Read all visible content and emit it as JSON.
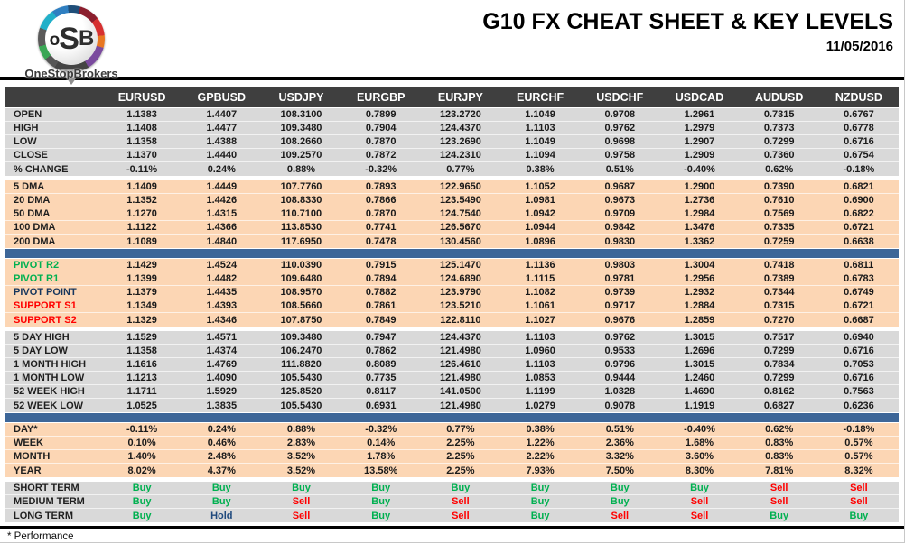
{
  "header": {
    "logo": {
      "l1": "o",
      "l2": "S",
      "l3": "B",
      "brand": "OneStopBrokers"
    },
    "title": "G10 FX CHEAT SHEET & KEY LEVELS",
    "date": "11/05/2016"
  },
  "footer": {
    "note": "* Performance"
  },
  "colors": {
    "header_row_bg": "#3f3f3f",
    "gray_band": "#d9d9d9",
    "peach_band": "#fcd6b4",
    "blue_bar": "#3d6698",
    "buy_green": "#00b050",
    "sell_red": "#ff0000",
    "hold_navy": "#1f497d",
    "pivot_navy": "#17365d",
    "text": "#1a1a1a"
  },
  "chart_data": {
    "type": "table",
    "title": "G10 FX CHEAT SHEET & KEY LEVELS",
    "date": "11/05/2016",
    "columns": [
      "EURUSD",
      "GPBUSD",
      "USDJPY",
      "EURGBP",
      "EURJPY",
      "EURCHF",
      "USDCHF",
      "USDCAD",
      "AUDUSD",
      "NZDUSD"
    ],
    "sections": [
      {
        "name": "ohlc",
        "style": "gray",
        "after": "gap",
        "rows": [
          {
            "label": "OPEN",
            "values": [
              "1.1383",
              "1.4407",
              "108.3100",
              "0.7899",
              "123.2720",
              "1.1049",
              "0.9708",
              "1.2961",
              "0.7315",
              "0.6767"
            ]
          },
          {
            "label": "HIGH",
            "values": [
              "1.1408",
              "1.4477",
              "109.3480",
              "0.7904",
              "124.4370",
              "1.1103",
              "0.9762",
              "1.2979",
              "0.7373",
              "0.6778"
            ]
          },
          {
            "label": "LOW",
            "values": [
              "1.1358",
              "1.4388",
              "108.2660",
              "0.7870",
              "123.2690",
              "1.1049",
              "0.9698",
              "1.2907",
              "0.7299",
              "0.6716"
            ]
          },
          {
            "label": "CLOSE",
            "values": [
              "1.1370",
              "1.4440",
              "109.2570",
              "0.7872",
              "124.2310",
              "1.1094",
              "0.9758",
              "1.2909",
              "0.7360",
              "0.6754"
            ]
          },
          {
            "label": "% CHANGE",
            "values": [
              "-0.11%",
              "0.24%",
              "0.88%",
              "-0.32%",
              "0.77%",
              "0.38%",
              "0.51%",
              "-0.40%",
              "0.62%",
              "-0.18%"
            ]
          }
        ]
      },
      {
        "name": "dma",
        "style": "peach",
        "after": "bar",
        "rows": [
          {
            "label": "5 DMA",
            "values": [
              "1.1409",
              "1.4449",
              "107.7760",
              "0.7893",
              "122.9650",
              "1.1052",
              "0.9687",
              "1.2900",
              "0.7390",
              "0.6821"
            ]
          },
          {
            "label": "20 DMA",
            "values": [
              "1.1352",
              "1.4426",
              "108.8330",
              "0.7866",
              "123.5490",
              "1.0981",
              "0.9673",
              "1.2736",
              "0.7610",
              "0.6900"
            ]
          },
          {
            "label": "50 DMA",
            "values": [
              "1.1270",
              "1.4315",
              "110.7100",
              "0.7870",
              "124.7540",
              "1.0942",
              "0.9709",
              "1.2984",
              "0.7569",
              "0.6822"
            ]
          },
          {
            "label": "100 DMA",
            "values": [
              "1.1122",
              "1.4366",
              "113.8530",
              "0.7741",
              "126.5670",
              "1.0944",
              "0.9842",
              "1.3476",
              "0.7335",
              "0.6721"
            ]
          },
          {
            "label": "200 DMA",
            "values": [
              "1.1089",
              "1.4840",
              "117.6950",
              "0.7478",
              "130.4560",
              "1.0896",
              "0.9830",
              "1.3362",
              "0.7259",
              "0.6638"
            ]
          }
        ]
      },
      {
        "name": "pivots",
        "style": "peach",
        "after": "gap",
        "rows": [
          {
            "label": "PIVOT R2",
            "label_color": "green",
            "values": [
              "1.1429",
              "1.4524",
              "110.0390",
              "0.7915",
              "125.1470",
              "1.1136",
              "0.9803",
              "1.3004",
              "0.7418",
              "0.6811"
            ]
          },
          {
            "label": "PIVOT R1",
            "label_color": "green",
            "values": [
              "1.1399",
              "1.4482",
              "109.6480",
              "0.7894",
              "124.6890",
              "1.1115",
              "0.9781",
              "1.2956",
              "0.7389",
              "0.6783"
            ]
          },
          {
            "label": "PIVOT POINT",
            "label_color": "navy",
            "values": [
              "1.1379",
              "1.4435",
              "108.9570",
              "0.7882",
              "123.9790",
              "1.1082",
              "0.9739",
              "1.2932",
              "0.7344",
              "0.6749"
            ]
          },
          {
            "label": "SUPPORT S1",
            "label_color": "red",
            "values": [
              "1.1349",
              "1.4393",
              "108.5660",
              "0.7861",
              "123.5210",
              "1.1061",
              "0.9717",
              "1.2884",
              "0.7315",
              "0.6721"
            ]
          },
          {
            "label": "SUPPORT S2",
            "label_color": "red",
            "values": [
              "1.1329",
              "1.4346",
              "107.8750",
              "0.7849",
              "122.8110",
              "1.1027",
              "0.9676",
              "1.2859",
              "0.7270",
              "0.6687"
            ]
          }
        ]
      },
      {
        "name": "ranges",
        "style": "gray",
        "after": "bar",
        "rows": [
          {
            "label": "5 DAY HIGH",
            "values": [
              "1.1529",
              "1.4571",
              "109.3480",
              "0.7947",
              "124.4370",
              "1.1103",
              "0.9762",
              "1.3015",
              "0.7517",
              "0.6940"
            ]
          },
          {
            "label": "5 DAY LOW",
            "values": [
              "1.1358",
              "1.4374",
              "106.2470",
              "0.7862",
              "121.4980",
              "1.0960",
              "0.9533",
              "1.2696",
              "0.7299",
              "0.6716"
            ]
          },
          {
            "label": "1 MONTH HIGH",
            "values": [
              "1.1616",
              "1.4769",
              "111.8820",
              "0.8089",
              "126.4610",
              "1.1103",
              "0.9796",
              "1.3015",
              "0.7834",
              "0.7053"
            ]
          },
          {
            "label": "1 MONTH LOW",
            "values": [
              "1.1213",
              "1.4090",
              "105.5430",
              "0.7735",
              "121.4980",
              "1.0853",
              "0.9444",
              "1.2460",
              "0.7299",
              "0.6716"
            ]
          },
          {
            "label": "52 WEEK HIGH",
            "values": [
              "1.1711",
              "1.5929",
              "125.8520",
              "0.8117",
              "141.0500",
              "1.1199",
              "1.0328",
              "1.4690",
              "0.8162",
              "0.7563"
            ]
          },
          {
            "label": "52 WEEK LOW",
            "values": [
              "1.0525",
              "1.3835",
              "105.5430",
              "0.6931",
              "121.4980",
              "1.0279",
              "0.9078",
              "1.1919",
              "0.6827",
              "0.6236"
            ]
          }
        ]
      },
      {
        "name": "performance",
        "style": "peach",
        "after": "gap",
        "rows": [
          {
            "label": "DAY*",
            "values": [
              "-0.11%",
              "0.24%",
              "0.88%",
              "-0.32%",
              "0.77%",
              "0.38%",
              "0.51%",
              "-0.40%",
              "0.62%",
              "-0.18%"
            ]
          },
          {
            "label": "WEEK",
            "values": [
              "0.10%",
              "0.46%",
              "2.83%",
              "0.14%",
              "2.25%",
              "1.22%",
              "2.36%",
              "1.68%",
              "0.83%",
              "0.57%"
            ]
          },
          {
            "label": "MONTH",
            "values": [
              "1.40%",
              "2.48%",
              "3.52%",
              "1.78%",
              "2.25%",
              "2.22%",
              "3.32%",
              "3.60%",
              "0.83%",
              "0.57%"
            ]
          },
          {
            "label": "YEAR",
            "values": [
              "8.02%",
              "4.37%",
              "3.52%",
              "13.58%",
              "2.25%",
              "7.93%",
              "7.50%",
              "8.30%",
              "7.81%",
              "8.32%"
            ]
          }
        ]
      },
      {
        "name": "signals",
        "style": "gray",
        "after": null,
        "rows": [
          {
            "label": "SHORT TERM",
            "values": [
              "Buy",
              "Buy",
              "Buy",
              "Buy",
              "Buy",
              "Buy",
              "Buy",
              "Buy",
              "Sell",
              "Sell"
            ]
          },
          {
            "label": "MEDIUM TERM",
            "values": [
              "Buy",
              "Buy",
              "Sell",
              "Buy",
              "Sell",
              "Buy",
              "Buy",
              "Sell",
              "Sell",
              "Sell"
            ]
          },
          {
            "label": "LONG TERM",
            "values": [
              "Buy",
              "Hold",
              "Sell",
              "Buy",
              "Sell",
              "Buy",
              "Sell",
              "Sell",
              "Buy",
              "Buy"
            ]
          }
        ]
      }
    ]
  }
}
